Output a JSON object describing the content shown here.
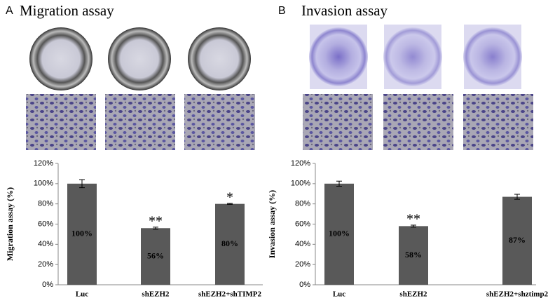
{
  "chart_data": [
    {
      "type": "bar",
      "panel": "A",
      "title": "Migration assay",
      "ylabel": "Migration assay (%)",
      "categories": [
        "Luc",
        "shEZH2",
        "shEZH2+shTIMP2"
      ],
      "values": [
        100,
        56,
        80
      ],
      "value_labels": [
        "100%",
        "56%",
        "80%"
      ],
      "errors": [
        4,
        1,
        0.5
      ],
      "annotations": [
        null,
        "**",
        "*"
      ],
      "color": "#595959",
      "ylim": [
        0,
        120
      ],
      "yticks": [
        {
          "value": 0,
          "label": "0%"
        },
        {
          "value": 20,
          "label": "20%"
        },
        {
          "value": 40,
          "label": "40%"
        },
        {
          "value": 60,
          "label": "60%"
        },
        {
          "value": 80,
          "label": "80%"
        },
        {
          "value": 100,
          "label": "100%"
        },
        {
          "value": 120,
          "label": "120%"
        }
      ]
    },
    {
      "type": "bar",
      "panel": "B",
      "title": "Invasion assay",
      "ylabel": "Invasion assay (%)",
      "categories": [
        "Luc",
        "shEZH2",
        "shEZH2+shztimp2"
      ],
      "values": [
        100,
        58,
        87
      ],
      "value_labels": [
        "100%",
        "58%",
        "87%"
      ],
      "errors": [
        2.5,
        1,
        2.5
      ],
      "annotations": [
        null,
        "**",
        null
      ],
      "color": "#595959",
      "ylim": [
        0,
        120
      ],
      "yticks": [
        {
          "value": 0,
          "label": "0%"
        },
        {
          "value": 20,
          "label": "20%"
        },
        {
          "value": 40,
          "label": "40%"
        },
        {
          "value": 60,
          "label": "60%"
        },
        {
          "value": 80,
          "label": "80%"
        },
        {
          "value": 100,
          "label": "100%"
        },
        {
          "value": 120,
          "label": "120%"
        }
      ]
    }
  ]
}
